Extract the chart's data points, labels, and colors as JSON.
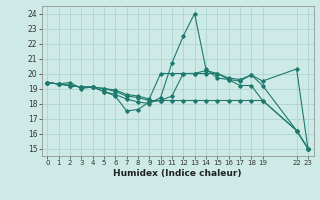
{
  "title": "",
  "xlabel": "Humidex (Indice chaleur)",
  "ylabel": "",
  "xlim": [
    -0.5,
    23.5
  ],
  "ylim": [
    14.5,
    24.5
  ],
  "xtick_positions": [
    0,
    1,
    2,
    3,
    4,
    5,
    6,
    7,
    8,
    9,
    10,
    11,
    12,
    13,
    14,
    15,
    16,
    17,
    18,
    19,
    22,
    23
  ],
  "xtick_labels": [
    "0",
    "1",
    "2",
    "3",
    "4",
    "5",
    "6",
    "7",
    "8",
    "9",
    "10",
    "11",
    "12",
    "13",
    "14",
    "15",
    "16",
    "17",
    "18",
    "19",
    "22",
    "23"
  ],
  "yticks": [
    15,
    16,
    17,
    18,
    19,
    20,
    21,
    22,
    23,
    24
  ],
  "bg_color": "#ceeae6",
  "grid_color": "#aed4cf",
  "line_color": "#1e7a6e",
  "lines": [
    {
      "x": [
        0,
        1,
        2,
        3,
        4,
        5,
        6,
        7,
        8,
        9,
        10,
        11,
        12,
        13,
        14,
        15,
        16,
        17,
        18,
        19,
        22,
        23
      ],
      "y": [
        19.4,
        19.3,
        19.4,
        19.0,
        19.1,
        18.8,
        18.5,
        17.5,
        17.6,
        18.1,
        18.2,
        18.2,
        18.2,
        18.2,
        18.2,
        18.2,
        18.2,
        18.2,
        18.2,
        18.2,
        16.2,
        15.0
      ]
    },
    {
      "x": [
        0,
        1,
        2,
        3,
        4,
        5,
        6,
        7,
        8,
        9,
        10,
        11,
        12,
        13,
        14,
        15,
        16,
        17,
        18,
        19,
        22,
        23
      ],
      "y": [
        19.4,
        19.3,
        19.2,
        19.1,
        19.1,
        19.0,
        18.8,
        18.5,
        18.4,
        18.2,
        18.2,
        18.5,
        20.0,
        20.0,
        20.2,
        20.0,
        19.7,
        19.6,
        19.9,
        19.2,
        16.2,
        15.0
      ]
    },
    {
      "x": [
        0,
        1,
        2,
        3,
        4,
        5,
        6,
        7,
        8,
        9,
        10,
        11,
        12,
        13,
        14,
        15,
        16,
        17,
        18,
        19,
        22,
        23
      ],
      "y": [
        19.4,
        19.3,
        19.2,
        19.1,
        19.1,
        18.8,
        18.6,
        18.3,
        18.1,
        18.0,
        18.4,
        20.7,
        22.5,
        24.0,
        20.3,
        19.7,
        19.6,
        19.2,
        19.2,
        18.2,
        16.2,
        15.0
      ]
    },
    {
      "x": [
        0,
        1,
        2,
        3,
        4,
        5,
        6,
        7,
        8,
        9,
        10,
        11,
        12,
        13,
        14,
        15,
        16,
        17,
        18,
        19,
        22,
        23
      ],
      "y": [
        19.4,
        19.3,
        19.2,
        19.1,
        19.1,
        19.0,
        18.9,
        18.6,
        18.5,
        18.3,
        20.0,
        20.0,
        20.0,
        20.0,
        20.0,
        20.0,
        19.6,
        19.5,
        19.9,
        19.5,
        20.3,
        15.0
      ]
    }
  ]
}
